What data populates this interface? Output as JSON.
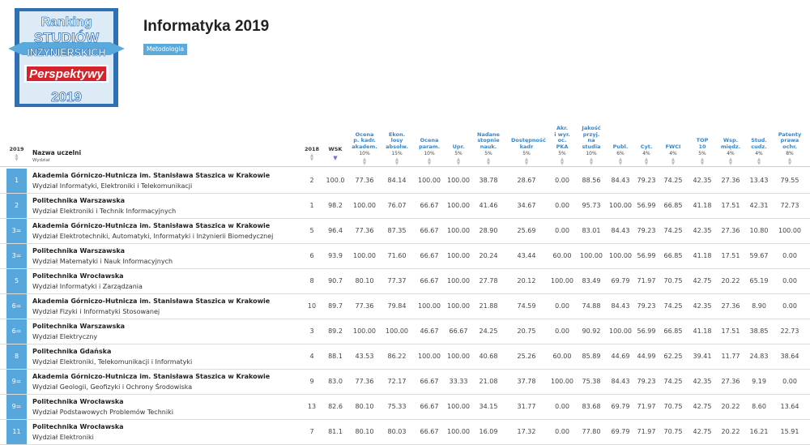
{
  "logo": {
    "line1": "Ranking",
    "line2": "STUDIÓW",
    "line3": "INŻYNIERSKICH",
    "brand": "Perspektywy",
    "year": "2019",
    "colors": {
      "frame": "#2f6fb3",
      "panel": "#dcebf6",
      "banner": "#6ab0df",
      "brand_box": "#d4232c"
    }
  },
  "page": {
    "title": "Informatyka 2019",
    "methodology_button": "Metodologia"
  },
  "header": {
    "rank_col": "2019",
    "name_col": "Nazwa uczelni",
    "name_sub": "Wydział",
    "prev_col": "2018",
    "wsk_col": "WSK",
    "criteria": [
      {
        "label_lines": [
          "Ocena",
          "p. kadr.",
          "akadem."
        ],
        "weight": "10%"
      },
      {
        "label_lines": [
          "Ekon.",
          "losy",
          "absolw."
        ],
        "weight": "15%"
      },
      {
        "label_lines": [
          "Ocena",
          "param."
        ],
        "weight": "10%"
      },
      {
        "label_lines": [
          "Upr."
        ],
        "weight": "5%"
      },
      {
        "label_lines": [
          "Nadane",
          "stopnie",
          "nauk."
        ],
        "weight": "5%"
      },
      {
        "label_lines": [
          "Dostępność",
          "kadr"
        ],
        "weight": "5%"
      },
      {
        "label_lines": [
          "Akr.",
          "i wyr.",
          "oc.",
          "PKA"
        ],
        "weight": "5%"
      },
      {
        "label_lines": [
          "Jakość",
          "przyj.",
          "na",
          "studia"
        ],
        "weight": "10%"
      },
      {
        "label_lines": [
          "Publ."
        ],
        "weight": "6%"
      },
      {
        "label_lines": [
          "Cyt."
        ],
        "weight": "4%"
      },
      {
        "label_lines": [
          "FWCI"
        ],
        "weight": "4%"
      },
      {
        "label_lines": [
          "TOP",
          "10"
        ],
        "weight": "5%"
      },
      {
        "label_lines": [
          "Wsp.",
          "międz."
        ],
        "weight": "4%"
      },
      {
        "label_lines": [
          "Stud.",
          "cudz."
        ],
        "weight": "4%"
      },
      {
        "label_lines": [
          "Patenty",
          "prawa",
          "ochr."
        ],
        "weight": "8%"
      }
    ]
  },
  "rows": [
    {
      "rank": "1",
      "university": "Akademia Górniczo-Hutnicza im. Stanisława Staszica w Krakowie",
      "faculty": "Wydział Informatyki, Elektroniki i Telekomunikacji",
      "prev": "2",
      "wsk": "100.0",
      "values": [
        "77.36",
        "84.14",
        "100.00",
        "100.00",
        "38.78",
        "28.67",
        "0.00",
        "88.56",
        "84.43",
        "79.23",
        "74.25",
        "42.35",
        "27.36",
        "13.43",
        "79.55"
      ]
    },
    {
      "rank": "2",
      "university": "Politechnika Warszawska",
      "faculty": "Wydział Elektroniki i Technik Informacyjnych",
      "prev": "1",
      "wsk": "98.2",
      "values": [
        "100.00",
        "76.07",
        "66.67",
        "100.00",
        "41.46",
        "34.67",
        "0.00",
        "95.73",
        "100.00",
        "56.99",
        "66.85",
        "41.18",
        "17.51",
        "42.31",
        "72.73"
      ]
    },
    {
      "rank": "3=",
      "university": "Akademia Górniczo-Hutnicza im. Stanisława Staszica w Krakowie",
      "faculty": "Wydział Elektrotechniki, Automatyki, Informatyki i Inżynierii Biomedycznej",
      "prev": "5",
      "wsk": "96.4",
      "values": [
        "77.36",
        "87.35",
        "66.67",
        "100.00",
        "28.90",
        "25.69",
        "0.00",
        "83.01",
        "84.43",
        "79.23",
        "74.25",
        "42.35",
        "27.36",
        "10.80",
        "100.00"
      ]
    },
    {
      "rank": "3=",
      "university": "Politechnika Warszawska",
      "faculty": "Wydział Matematyki i Nauk Informacyjnych",
      "prev": "6",
      "wsk": "93.9",
      "values": [
        "100.00",
        "71.60",
        "66.67",
        "100.00",
        "20.24",
        "43.44",
        "60.00",
        "100.00",
        "100.00",
        "56.99",
        "66.85",
        "41.18",
        "17.51",
        "59.67",
        "0.00"
      ]
    },
    {
      "rank": "5",
      "university": "Politechnika Wrocławska",
      "faculty": "Wydział Informatyki i Zarządzania",
      "prev": "8",
      "wsk": "90.7",
      "values": [
        "80.10",
        "77.37",
        "66.67",
        "100.00",
        "27.78",
        "20.12",
        "100.00",
        "83.49",
        "69.79",
        "71.97",
        "70.75",
        "42.75",
        "20.22",
        "65.19",
        "0.00"
      ]
    },
    {
      "rank": "6=",
      "university": "Akademia Górniczo-Hutnicza im. Stanisława Staszica w Krakowie",
      "faculty": "Wydział Fizyki i Informatyki Stosowanej",
      "prev": "10",
      "wsk": "89.7",
      "values": [
        "77.36",
        "79.84",
        "100.00",
        "100.00",
        "21.88",
        "74.59",
        "0.00",
        "74.88",
        "84.43",
        "79.23",
        "74.25",
        "42.35",
        "27.36",
        "8.90",
        "0.00"
      ]
    },
    {
      "rank": "6=",
      "university": "Politechnika Warszawska",
      "faculty": "Wydział Elektryczny",
      "prev": "3",
      "wsk": "89.2",
      "values": [
        "100.00",
        "100.00",
        "46.67",
        "66.67",
        "24.25",
        "20.75",
        "0.00",
        "90.92",
        "100.00",
        "56.99",
        "66.85",
        "41.18",
        "17.51",
        "38.85",
        "22.73"
      ]
    },
    {
      "rank": "8",
      "university": "Politechnika Gdańska",
      "faculty": "Wydział Elektroniki, Telekomunikacji i Informatyki",
      "prev": "4",
      "wsk": "88.1",
      "values": [
        "43.53",
        "86.22",
        "100.00",
        "100.00",
        "40.68",
        "25.26",
        "60.00",
        "85.89",
        "44.69",
        "44.99",
        "62.25",
        "39.41",
        "11.77",
        "24.83",
        "38.64"
      ]
    },
    {
      "rank": "9=",
      "university": "Akademia Górniczo-Hutnicza im. Stanisława Staszica w Krakowie",
      "faculty": "Wydział Geologii, Geofizyki i Ochrony Środowiska",
      "prev": "9",
      "wsk": "83.0",
      "values": [
        "77.36",
        "72.17",
        "66.67",
        "33.33",
        "21.08",
        "37.78",
        "100.00",
        "75.38",
        "84.43",
        "79.23",
        "74.25",
        "42.35",
        "27.36",
        "9.19",
        "0.00"
      ]
    },
    {
      "rank": "9=",
      "university": "Politechnika Wrocławska",
      "faculty": "Wydział Podstawowych Problemów Techniki",
      "prev": "13",
      "wsk": "82.6",
      "values": [
        "80.10",
        "75.33",
        "66.67",
        "100.00",
        "34.15",
        "31.77",
        "0.00",
        "83.68",
        "69.79",
        "71.97",
        "70.75",
        "42.75",
        "20.22",
        "8.60",
        "13.64"
      ]
    },
    {
      "rank": "11",
      "university": "Politechnika Wrocławska",
      "faculty": "Wydział Elektroniki",
      "prev": "7",
      "wsk": "81.1",
      "values": [
        "80.10",
        "80.03",
        "66.67",
        "100.00",
        "16.09",
        "17.32",
        "0.00",
        "77.80",
        "69.79",
        "71.97",
        "70.75",
        "42.75",
        "20.22",
        "16.21",
        "15.91"
      ]
    }
  ]
}
